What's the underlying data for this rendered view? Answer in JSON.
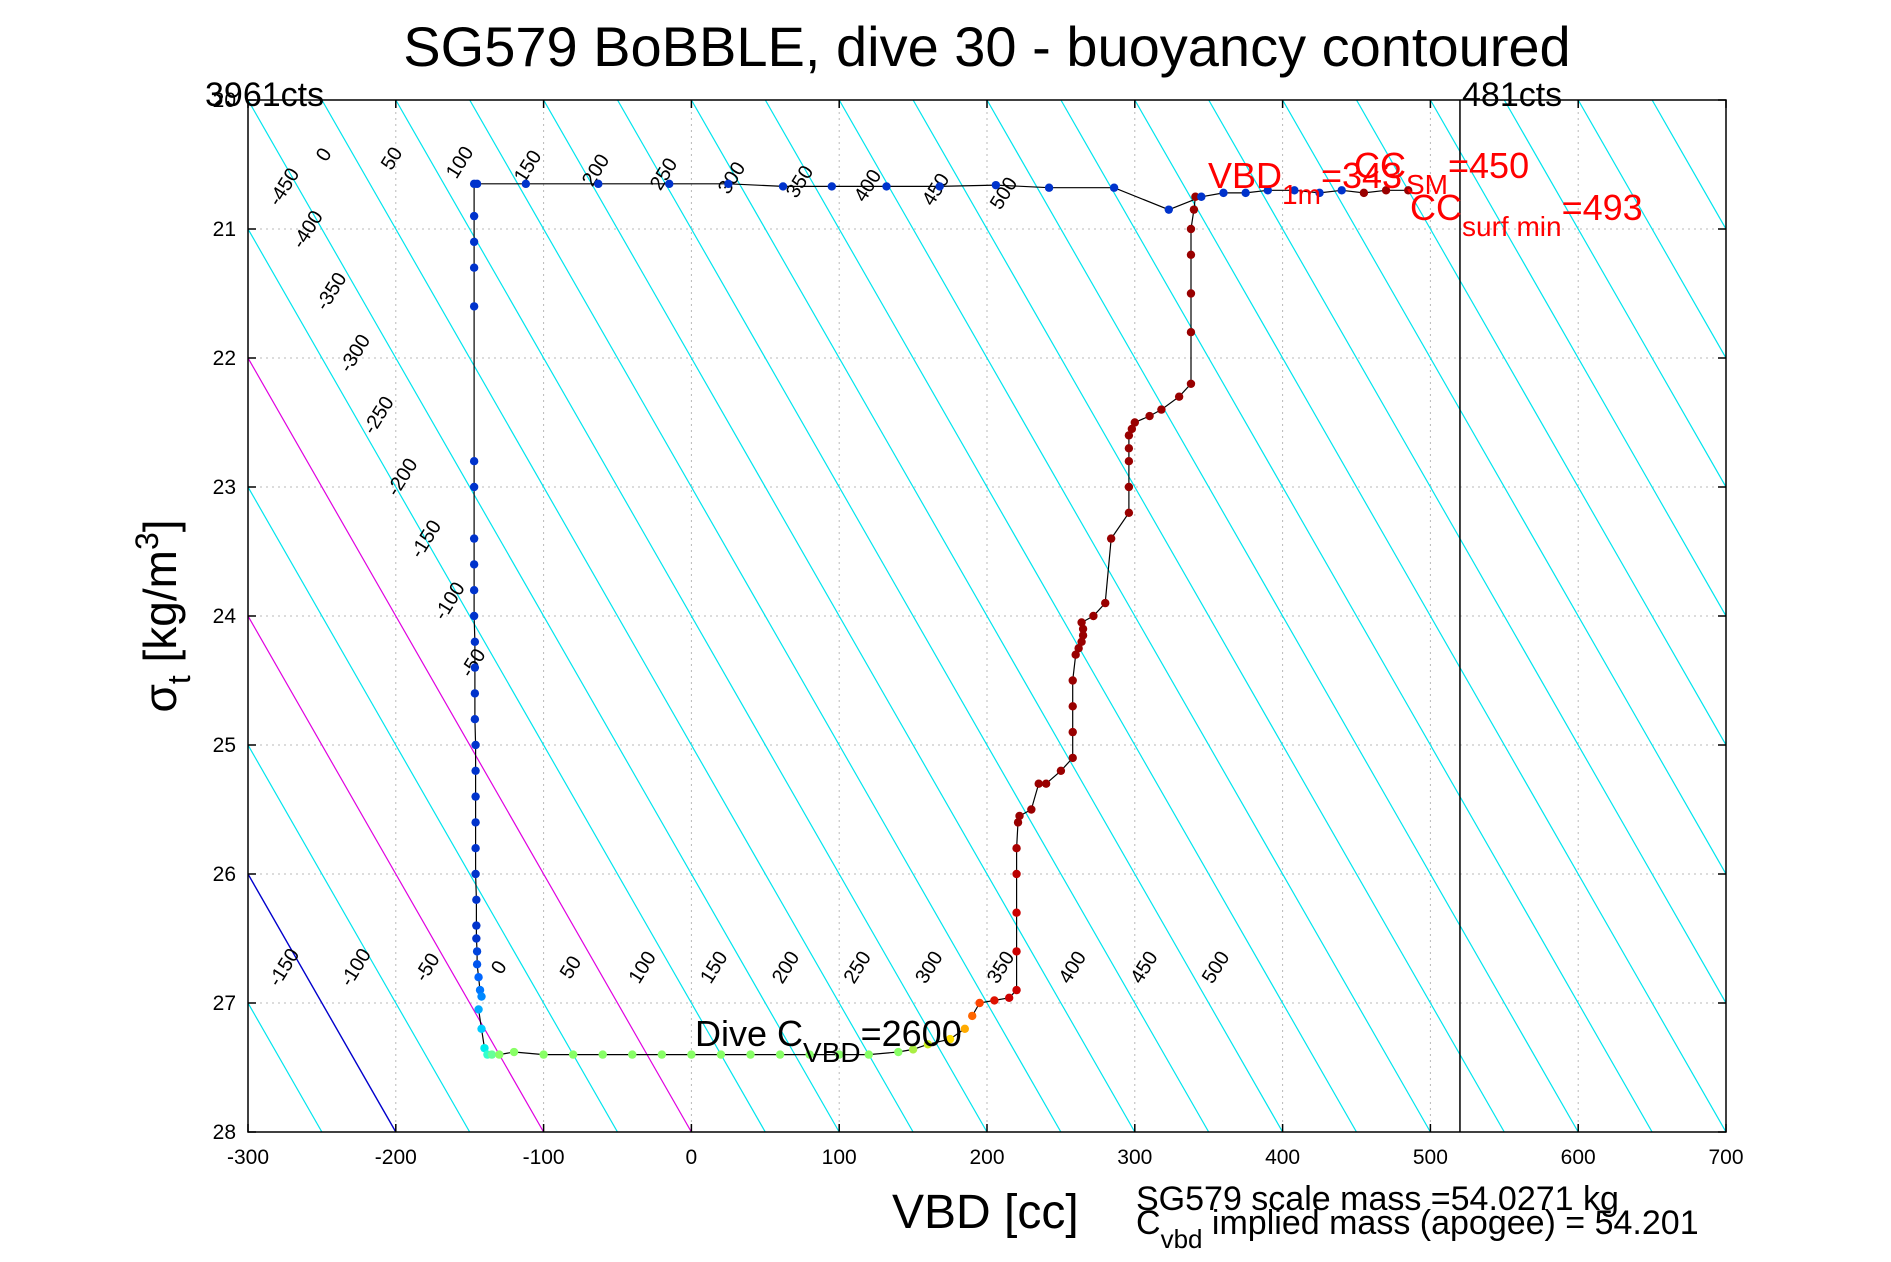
{
  "chart_data": {
    "type": "scatter",
    "title": "SG579 BoBBLE, dive 30 - buoyancy contoured",
    "xlabel": "VBD [cc]",
    "ylabel_main": "σ",
    "ylabel_sub": "t",
    "ylabel_rest": " [kg/m",
    "ylabel_sup": "3",
    "ylabel_close": "]",
    "xlim": [
      -300,
      700
    ],
    "ylim": [
      20,
      28
    ],
    "y_reversed": true,
    "grid": true,
    "x_ticks": [
      "-300",
      "-200",
      "-100",
      "0",
      "100",
      "200",
      "300",
      "400",
      "500",
      "600",
      "700"
    ],
    "y_ticks": [
      "20",
      "21",
      "22",
      "23",
      "24",
      "25",
      "26",
      "27",
      "28"
    ],
    "colors": {
      "contour": "#00e5ee",
      "contour_highlight": "#e000e0",
      "zero_line": "#0000cc",
      "text_red": "#ff0000",
      "trace": "#000000"
    },
    "corner_labels": {
      "left": "3961cts",
      "right": "481cts"
    },
    "vertical_line_x": 520,
    "upper_contour_labels": [
      "-450",
      "-400",
      "-350",
      "-300",
      "-250",
      "-200",
      "-150",
      "-100",
      "-50",
      "0",
      "50",
      "100",
      "150",
      "200",
      "250",
      "300",
      "350",
      "400",
      "450",
      "500"
    ],
    "lower_contour_labels": [
      "-150",
      "-100",
      "-50",
      "0",
      "50",
      "100",
      "150",
      "200",
      "250",
      "300",
      "350",
      "400",
      "450",
      "500"
    ],
    "annotations": {
      "dive_main": "Dive C",
      "dive_sub": "VBD",
      "dive_val": "=2600",
      "vbd1m_main": "VBD",
      "vbd1m_sub": "1m",
      "vbd1m_val": "=343",
      "cc_main": "CC",
      "cc_sub": "SM",
      "cc_val": "=450",
      "ccsurf_main": "CC",
      "ccsurf_sub": "surf min",
      "ccsurf_val": "=493",
      "scale_mass": "SG579 scale mass =54.0271 kg",
      "implied_main": "C",
      "implied_sub": "vbd",
      "implied_rest": " implied mass (apogee) = 54.201"
    },
    "series": [
      {
        "role": "dive",
        "x": [
          -147,
          -147,
          -147,
          -147,
          -147,
          -147,
          -147,
          -147,
          -147,
          -147,
          -147,
          -146.5,
          -146.5,
          -146.5,
          -146.5,
          -146,
          -146,
          -146,
          -146,
          -146,
          -146,
          -145.5,
          -145.5,
          -145.5,
          -145,
          -145,
          -144,
          -143,
          -142
        ],
        "y": [
          20.65,
          20.9,
          21.1,
          21.3,
          21.6,
          22.8,
          23.0,
          23.4,
          23.6,
          23.8,
          24.0,
          24.2,
          24.4,
          24.6,
          24.8,
          25.0,
          25.2,
          25.4,
          25.6,
          25.8,
          26.0,
          26.2,
          26.4,
          26.5,
          26.6,
          26.7,
          26.8,
          26.9,
          26.95
        ],
        "colors": [
          "#0033cc",
          "#0033cc",
          "#0033cc",
          "#0033cc",
          "#0033cc",
          "#0033cc",
          "#0033cc",
          "#0033cc",
          "#0033cc",
          "#0033cc",
          "#0033cc",
          "#0033cc",
          "#0033cc",
          "#0033cc",
          "#0033cc",
          "#0033cc",
          "#0033cc",
          "#0033cc",
          "#0033cc",
          "#0033cc",
          "#0033cc",
          "#0033cc",
          "#0033cc",
          "#0033cc",
          "#0044dd",
          "#0055ee",
          "#0066ff",
          "#0077ff",
          "#0088ff"
        ]
      },
      {
        "role": "bottom-turn",
        "x": [
          -144,
          -142,
          -140,
          -138,
          -135,
          -130,
          -120,
          -100,
          -80,
          -60,
          -40,
          -20,
          0,
          20,
          40,
          60,
          80,
          100,
          120,
          140,
          150,
          160,
          175,
          185
        ],
        "y": [
          27.05,
          27.2,
          27.35,
          27.4,
          27.4,
          27.4,
          27.38,
          27.4,
          27.4,
          27.4,
          27.4,
          27.4,
          27.4,
          27.4,
          27.4,
          27.4,
          27.4,
          27.4,
          27.4,
          27.38,
          27.36,
          27.32,
          27.28,
          27.2
        ],
        "colors": [
          "#00aaff",
          "#00ccff",
          "#00eeee",
          "#33ffcc",
          "#66ff99",
          "#88ff66",
          "#88ff66",
          "#88ff66",
          "#88ff66",
          "#88ff66",
          "#88ff66",
          "#88ff66",
          "#88ff66",
          "#88ff66",
          "#88ff66",
          "#88ff66",
          "#88ff66",
          "#88ff66",
          "#88ff66",
          "#88ff66",
          "#aaee44",
          "#ccee22",
          "#ffdd00",
          "#ffaa00"
        ]
      },
      {
        "role": "climb",
        "x": [
          190,
          195,
          205,
          215,
          220,
          220,
          220,
          220,
          220,
          221,
          222,
          230,
          235,
          240,
          250,
          258,
          258,
          258,
          258,
          260,
          262,
          264,
          265,
          265,
          264,
          272,
          280,
          284,
          296,
          296,
          296,
          296,
          296,
          298,
          300,
          310,
          318,
          330,
          338,
          338,
          338,
          338,
          338,
          340,
          341
        ],
        "y": [
          27.1,
          27.0,
          26.98,
          26.96,
          26.9,
          26.6,
          26.3,
          26.0,
          25.8,
          25.6,
          25.55,
          25.5,
          25.3,
          25.3,
          25.2,
          25.1,
          24.9,
          24.7,
          24.5,
          24.3,
          24.25,
          24.2,
          24.15,
          24.1,
          24.05,
          24.0,
          23.9,
          23.4,
          23.2,
          23.0,
          22.8,
          22.7,
          22.6,
          22.55,
          22.5,
          22.45,
          22.4,
          22.3,
          22.2,
          21.8,
          21.5,
          21.2,
          21.0,
          20.85,
          20.75
        ],
        "colors": [
          "#ff6600",
          "#ff4400",
          "#dd1100",
          "#cc0000",
          "#cc0000",
          "#cc0000",
          "#cc0000",
          "#bb0000",
          "#aa0000",
          "#990000",
          "#990000",
          "#990000",
          "#990000",
          "#990000",
          "#990000",
          "#990000",
          "#990000",
          "#990000",
          "#990000",
          "#990000",
          "#990000",
          "#990000",
          "#990000",
          "#990000",
          "#990000",
          "#990000",
          "#990000",
          "#990000",
          "#990000",
          "#990000",
          "#990000",
          "#990000",
          "#990000",
          "#990000",
          "#990000",
          "#990000",
          "#990000",
          "#990000",
          "#990000",
          "#990000",
          "#990000",
          "#990000",
          "#990000",
          "#990000",
          "#990000"
        ]
      },
      {
        "role": "surface-upper",
        "x": [
          -145,
          -112,
          -63,
          -15,
          25,
          62,
          95,
          132,
          168,
          206,
          242,
          286,
          323,
          345,
          360,
          375,
          390,
          408,
          425,
          440,
          455,
          470,
          485
        ],
        "y": [
          20.65,
          20.65,
          20.65,
          20.65,
          20.65,
          20.67,
          20.67,
          20.67,
          20.67,
          20.66,
          20.68,
          20.68,
          20.85,
          20.75,
          20.72,
          20.72,
          20.7,
          20.7,
          20.72,
          20.7,
          20.72,
          20.7,
          20.7
        ],
        "colors": [
          "#0033cc",
          "#0033cc",
          "#0033cc",
          "#0033cc",
          "#0033cc",
          "#0033cc",
          "#0033cc",
          "#0033cc",
          "#0033cc",
          "#0033cc",
          "#0033cc",
          "#0033cc",
          "#0033cc",
          "#0033cc",
          "#0033cc",
          "#0033cc",
          "#0033cc",
          "#0033cc",
          "#0033cc",
          "#0033cc",
          "#990000",
          "#990000",
          "#990000"
        ]
      }
    ]
  }
}
